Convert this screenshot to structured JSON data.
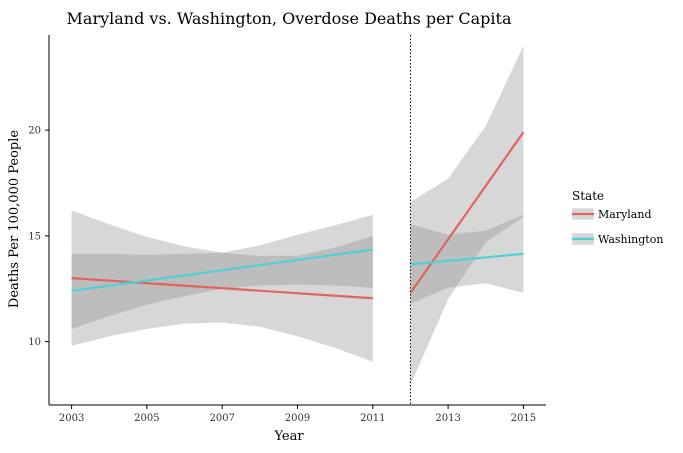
{
  "chart_data": {
    "type": "line",
    "title": "Maryland vs. Washington, Overdose Deaths per Capita",
    "xlabel": "Year",
    "ylabel": "Deaths Per 100,000 People",
    "xlim": [
      2002.4,
      2015.6
    ],
    "ylim": [
      7.0,
      24.5
    ],
    "x_ticks": [
      "2003",
      "2005",
      "2007",
      "2009",
      "2011",
      "2013",
      "2015"
    ],
    "y_ticks": [
      "10",
      "15",
      "20"
    ],
    "x_tick_values": [
      2003,
      2005,
      2007,
      2009,
      2011,
      2013,
      2015
    ],
    "y_tick_values": [
      10,
      15,
      20
    ],
    "vline": 2012,
    "grid": false,
    "legend": {
      "title": "State",
      "position": "right"
    },
    "series": [
      {
        "name": "Maryland",
        "color": "#E0655F",
        "segments": [
          {
            "x": [
              2003,
              2011
            ],
            "y": [
              13.0,
              12.05
            ],
            "band_x": [
              2003,
              2004,
              2005,
              2006,
              2007,
              2008,
              2009,
              2010,
              2011
            ],
            "band_lower": [
              9.8,
              10.25,
              10.6,
              10.85,
              10.9,
              10.7,
              10.25,
              9.7,
              9.05
            ],
            "band_upper": [
              16.2,
              15.55,
              14.95,
              14.5,
              14.2,
              14.05,
              14.05,
              14.45,
              15.0
            ]
          },
          {
            "x": [
              2012,
              2015
            ],
            "y": [
              12.3,
              19.9
            ],
            "band_x": [
              2012,
              2013,
              2014,
              2015
            ],
            "band_lower": [
              7.95,
              12.0,
              14.7,
              15.9
            ],
            "band_upper": [
              16.6,
              17.7,
              20.2,
              24.0
            ]
          }
        ]
      },
      {
        "name": "Washington",
        "color": "#4ED1D4",
        "segments": [
          {
            "x": [
              2003,
              2011
            ],
            "y": [
              12.4,
              14.35
            ],
            "band_x": [
              2003,
              2004,
              2005,
              2006,
              2007,
              2008,
              2009,
              2010,
              2011
            ],
            "band_lower": [
              10.6,
              11.2,
              11.75,
              12.15,
              12.5,
              12.65,
              12.7,
              12.65,
              12.55
            ],
            "band_upper": [
              14.15,
              14.15,
              14.1,
              14.15,
              14.2,
              14.55,
              15.05,
              15.5,
              16.0
            ]
          },
          {
            "x": [
              2012,
              2015
            ],
            "y": [
              13.65,
              14.15
            ],
            "band_x": [
              2012,
              2013,
              2014,
              2015
            ],
            "band_lower": [
              11.8,
              12.55,
              12.75,
              12.3
            ],
            "band_upper": [
              15.55,
              15.05,
              15.25,
              16.0
            ]
          }
        ]
      }
    ]
  }
}
